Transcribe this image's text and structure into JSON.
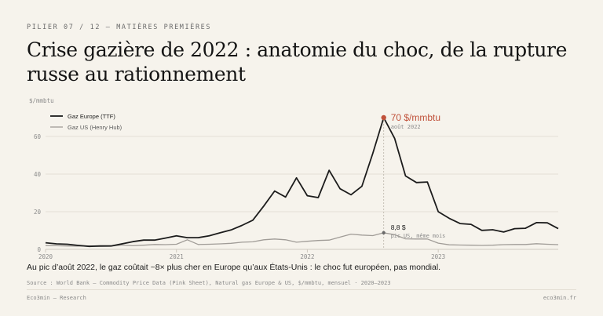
{
  "kicker": "PILIER 07 / 12 — MATIÈRES PREMIÈRES",
  "title": "Crise gazière de 2022 : anatomie du choc, de la rupture russe au rationnement",
  "caption": "Au pic d’août 2022, le gaz coûtait ~8× plus cher en Europe qu’aux États-Unis : le choc fut européen, pas mondial.",
  "source": "Source : World Bank — Commodity Price Data (Pink Sheet), Natural gas Europe & US, $/mmbtu, mensuel · 2020–2023",
  "brand": "Eco3min — Research",
  "site": "eco3min.fr",
  "colors": {
    "europe": "#1c1c1c",
    "us": "#a09c97",
    "accent": "#c0513a",
    "grid": "#e4dfd6"
  },
  "chart_data": {
    "type": "line",
    "ylabel": "$/mmbtu",
    "ylim": [
      0,
      75
    ],
    "yticks": [
      "0",
      "20",
      "40",
      "60"
    ],
    "xticks": [
      "2020",
      "2021",
      "2022",
      "2023"
    ],
    "x": [
      "2020-01",
      "2020-02",
      "2020-03",
      "2020-04",
      "2020-05",
      "2020-06",
      "2020-07",
      "2020-08",
      "2020-09",
      "2020-10",
      "2020-11",
      "2020-12",
      "2021-01",
      "2021-02",
      "2021-03",
      "2021-04",
      "2021-05",
      "2021-06",
      "2021-07",
      "2021-08",
      "2021-09",
      "2021-10",
      "2021-11",
      "2021-12",
      "2022-01",
      "2022-02",
      "2022-03",
      "2022-04",
      "2022-05",
      "2022-06",
      "2022-07",
      "2022-08",
      "2022-09",
      "2022-10",
      "2022-11",
      "2022-12",
      "2023-01",
      "2023-02",
      "2023-03",
      "2023-04",
      "2023-05",
      "2023-06",
      "2023-07",
      "2023-08",
      "2023-09",
      "2023-10",
      "2023-11",
      "2023-12"
    ],
    "series": [
      {
        "name": "Gaz Europe (TTF)",
        "values": [
          3.5,
          2.9,
          2.7,
          2.1,
          1.6,
          1.8,
          1.8,
          2.9,
          4.1,
          4.9,
          4.9,
          6.0,
          7.2,
          6.2,
          6.2,
          7.2,
          8.8,
          10.3,
          12.7,
          15.5,
          23.0,
          31.0,
          27.8,
          38.0,
          28.5,
          27.5,
          42.0,
          32.2,
          29.0,
          33.5,
          51.0,
          70.0,
          59.0,
          39.0,
          35.5,
          35.8,
          20.0,
          16.5,
          13.7,
          13.3,
          10.1,
          10.4,
          9.2,
          11.0,
          11.2,
          14.2,
          14.1,
          11.0
        ]
      },
      {
        "name": "Gaz US (Henry Hub)",
        "values": [
          2.0,
          1.9,
          1.8,
          1.7,
          1.8,
          1.6,
          1.7,
          2.3,
          1.9,
          2.2,
          2.6,
          2.5,
          2.7,
          5.1,
          2.6,
          2.7,
          2.9,
          3.2,
          3.8,
          4.0,
          5.1,
          5.5,
          5.1,
          3.8,
          4.3,
          4.7,
          4.9,
          6.5,
          8.1,
          7.6,
          7.3,
          8.8,
          7.8,
          5.6,
          5.5,
          5.5,
          3.3,
          2.4,
          2.3,
          2.2,
          2.1,
          2.2,
          2.5,
          2.6,
          2.6,
          3.0,
          2.7,
          2.5
        ]
      }
    ],
    "annotations": {
      "europe_peak": {
        "value": "70 $/mmbtu",
        "date": "août 2022",
        "x": "2022-08",
        "y": 70
      },
      "us_peak": {
        "value": "8,8 $",
        "note": "pic US, même mois",
        "x": "2022-08",
        "y": 8.8
      }
    },
    "legend": "top-left",
    "grid": true
  }
}
